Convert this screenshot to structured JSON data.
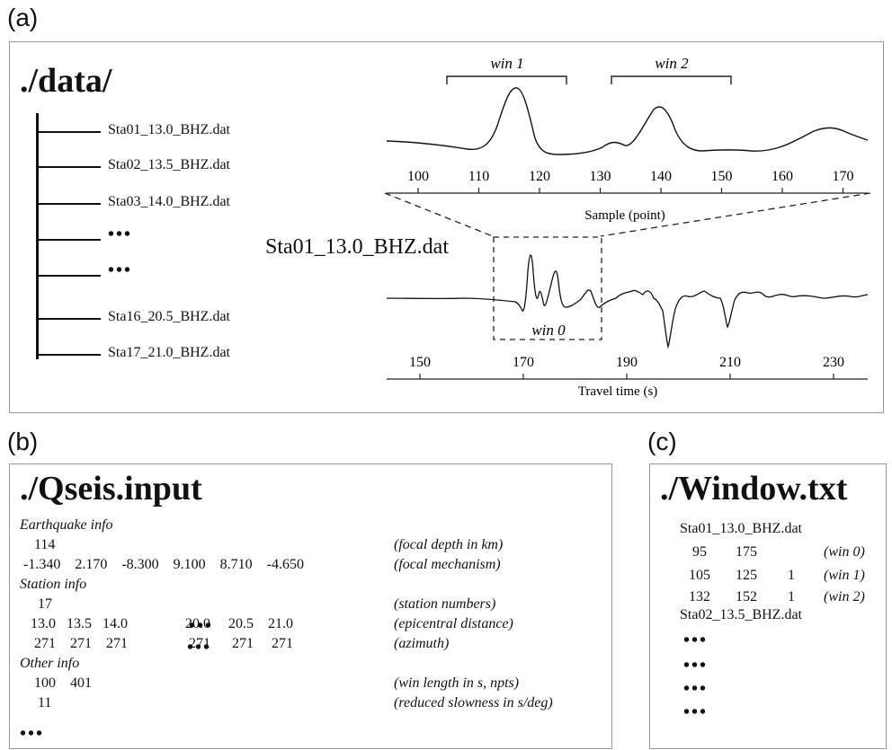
{
  "panel_a": {
    "label": "(a)",
    "dir_title": "./data/",
    "files": [
      "Sta01_13.0_BHZ.dat",
      "Sta02_13.5_BHZ.dat",
      "Sta03_14.0_BHZ.dat",
      "•••",
      "•••",
      "Sta16_20.5_BHZ.dat",
      "Sta17_21.0_BHZ.dat"
    ],
    "upper_plot": {
      "win1_label": "win 1",
      "win2_label": "win 2",
      "ticks": [
        "100",
        "110",
        "120",
        "130",
        "140",
        "150",
        "160",
        "170"
      ],
      "xlabel": "Sample (point)"
    },
    "lower_plot": {
      "station_label": "Sta01_13.0_BHZ.dat",
      "win0_label": "win 0",
      "ticks": [
        "150",
        "170",
        "190",
        "210",
        "230"
      ],
      "xlabel": "Travel time (s)"
    }
  },
  "panel_b": {
    "label": "(b)",
    "title": "./Qseis.input",
    "lines": [
      {
        "text": "Earthquake info",
        "style": "it",
        "comment": ""
      },
      {
        "text": "    114",
        "style": "",
        "comment": "(focal depth in km)"
      },
      {
        "text": " -1.340    2.170    -8.300    9.100    8.710    -4.650",
        "style": "",
        "comment": "(focal mechanism)"
      },
      {
        "text": "Station info",
        "style": "it",
        "comment": ""
      },
      {
        "text": "     17",
        "style": "",
        "comment": "(station numbers)"
      },
      {
        "text": "   13.0   13.5   14.0                20.0     20.5    21.0",
        "style": "",
        "comment": "(epicentral distance)"
      },
      {
        "text": "    271    271    271                 271      271     271",
        "style": "",
        "comment": "(azimuth)"
      },
      {
        "text": "Other info",
        "style": "it",
        "comment": ""
      },
      {
        "text": "    100    401",
        "style": "",
        "comment": "(win length in s, npts)"
      },
      {
        "text": "     11",
        "style": "",
        "comment": "(reduced slowness in s/deg)"
      }
    ],
    "dots": "•••"
  },
  "panel_c": {
    "label": "(c)",
    "title": "./Window.txt",
    "station1": "Sta01_13.0_BHZ.dat",
    "rows": [
      {
        "a": "95",
        "b": "175",
        "c": "",
        "win": "(win 0)"
      },
      {
        "a": "105",
        "b": "125",
        "c": "1",
        "win": "(win 1)"
      },
      {
        "a": "132",
        "b": "152",
        "c": "1",
        "win": "(win 2)"
      }
    ],
    "station2": "Sta02_13.5_BHZ.dat",
    "dots": "•••"
  }
}
